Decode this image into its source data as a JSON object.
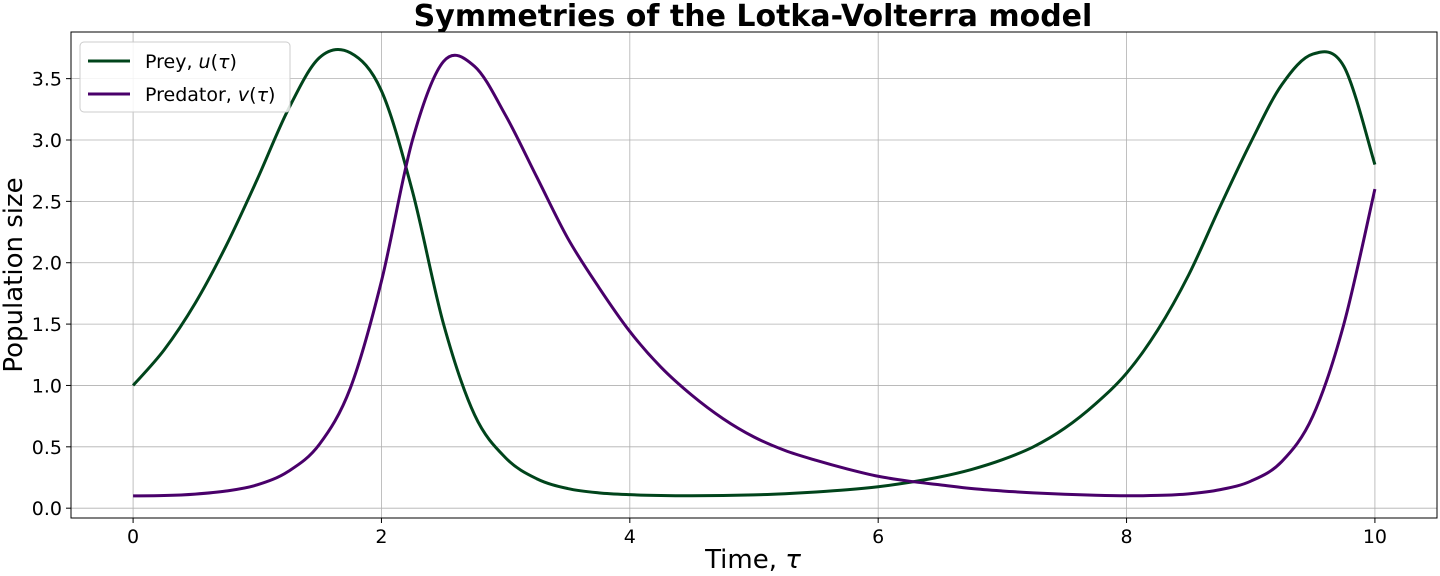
{
  "chart_data": {
    "type": "line",
    "title": "Symmetries of the Lotka-Volterra model",
    "xlabel": "Time, τ",
    "ylabel": "Population size",
    "xlim": [
      -0.5,
      10.5
    ],
    "ylim": [
      -0.08,
      3.88
    ],
    "xticks": [
      0,
      2,
      4,
      6,
      8,
      10
    ],
    "xtick_labels": [
      "0",
      "2",
      "4",
      "6",
      "8",
      "10"
    ],
    "yticks": [
      0.0,
      0.5,
      1.0,
      1.5,
      2.0,
      2.5,
      3.0,
      3.5
    ],
    "ytick_labels": [
      "0.0",
      "0.5",
      "1.0",
      "1.5",
      "2.0",
      "2.5",
      "3.0",
      "3.5"
    ],
    "grid": true,
    "legend_position": "top-left",
    "series": [
      {
        "name": "Prey, u(τ)",
        "name_parts": [
          "Prey, ",
          "u",
          "(",
          "τ",
          ")"
        ],
        "color": "#00441b",
        "x": [
          0.0,
          0.25,
          0.5,
          0.75,
          1.0,
          1.25,
          1.5,
          1.75,
          2.0,
          2.25,
          2.5,
          2.75,
          3.0,
          3.25,
          3.5,
          3.75,
          4.0,
          4.25,
          4.5,
          4.75,
          5.0,
          5.25,
          5.5,
          5.75,
          6.0,
          6.25,
          6.5,
          6.75,
          7.0,
          7.25,
          7.5,
          7.75,
          8.0,
          8.25,
          8.5,
          8.75,
          9.0,
          9.25,
          9.5,
          9.75,
          10.0
        ],
        "y": [
          1.0,
          1.29,
          1.67,
          2.14,
          2.68,
          3.25,
          3.67,
          3.71,
          3.4,
          2.58,
          1.5,
          0.76,
          0.41,
          0.24,
          0.16,
          0.125,
          0.11,
          0.103,
          0.101,
          0.103,
          0.108,
          0.118,
          0.132,
          0.15,
          0.175,
          0.21,
          0.255,
          0.315,
          0.395,
          0.5,
          0.65,
          0.85,
          1.1,
          1.45,
          1.9,
          2.45,
          2.98,
          3.45,
          3.7,
          3.6,
          2.8
        ]
      },
      {
        "name": "Predator, v(τ)",
        "name_parts": [
          "Predator, ",
          "v",
          "(",
          "τ",
          ")"
        ],
        "color": "#49006a",
        "x": [
          0.0,
          0.25,
          0.5,
          0.75,
          1.0,
          1.25,
          1.5,
          1.75,
          2.0,
          2.25,
          2.5,
          2.75,
          3.0,
          3.25,
          3.5,
          3.75,
          4.0,
          4.25,
          4.5,
          4.75,
          5.0,
          5.25,
          5.5,
          5.75,
          6.0,
          6.25,
          6.5,
          6.75,
          7.0,
          7.25,
          7.5,
          7.75,
          8.0,
          8.25,
          8.5,
          8.75,
          9.0,
          9.25,
          9.5,
          9.75,
          10.0
        ],
        "y": [
          0.1,
          0.103,
          0.115,
          0.14,
          0.19,
          0.3,
          0.52,
          0.98,
          1.85,
          3.0,
          3.64,
          3.6,
          3.2,
          2.7,
          2.2,
          1.8,
          1.44,
          1.15,
          0.92,
          0.73,
          0.58,
          0.47,
          0.39,
          0.32,
          0.26,
          0.22,
          0.19,
          0.16,
          0.14,
          0.125,
          0.113,
          0.105,
          0.101,
          0.104,
          0.117,
          0.15,
          0.22,
          0.38,
          0.75,
          1.5,
          2.6
        ]
      }
    ]
  }
}
